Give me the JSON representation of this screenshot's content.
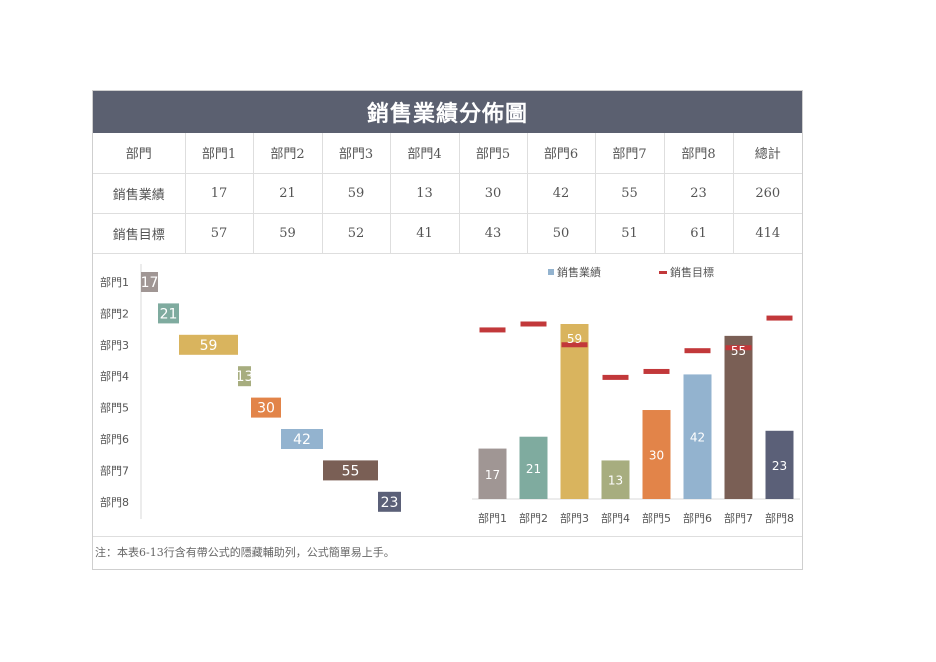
{
  "title": "銷售業績分佈圖",
  "table": {
    "header_label": "部門",
    "departments": [
      "部門1",
      "部門2",
      "部門3",
      "部門4",
      "部門5",
      "部門6",
      "部門7",
      "部門8"
    ],
    "total_label": "總計",
    "rows": [
      {
        "label": "銷售業績",
        "values": [
          "17",
          "21",
          "59",
          "13",
          "30",
          "42",
          "55",
          "23"
        ],
        "total": "260"
      },
      {
        "label": "銷售目標",
        "values": [
          "57",
          "59",
          "52",
          "41",
          "43",
          "50",
          "51",
          "61"
        ],
        "total": "414"
      }
    ]
  },
  "note": "注：本表6-13行含有帶公式的隱藏輔助列，公式簡單易上手。",
  "colors": {
    "header": "#5b6070",
    "bars": [
      "#a09694",
      "#7fab9f",
      "#d9b45e",
      "#a7ad7f",
      "#e28449",
      "#93b3cf",
      "#7a5f55",
      "#5b6078"
    ],
    "target_marker": "#c2383a"
  },
  "chart_data": [
    {
      "type": "bar",
      "orientation": "horizontal-waterfall",
      "categories": [
        "部門1",
        "部門2",
        "部門3",
        "部門4",
        "部門5",
        "部門6",
        "部門7",
        "部門8"
      ],
      "values": [
        17,
        21,
        59,
        13,
        30,
        42,
        55,
        23
      ]
    },
    {
      "type": "bar",
      "categories": [
        "部門1",
        "部門2",
        "部門3",
        "部門4",
        "部門5",
        "部門6",
        "部門7",
        "部門8"
      ],
      "series": [
        {
          "name": "銷售業績",
          "values": [
            17,
            21,
            59,
            13,
            30,
            42,
            55,
            23
          ]
        },
        {
          "name": "銷售目標",
          "values": [
            57,
            59,
            52,
            41,
            43,
            50,
            51,
            61
          ],
          "marker": "dash"
        }
      ],
      "ylim": [
        0,
        65
      ],
      "legend": "top"
    }
  ]
}
